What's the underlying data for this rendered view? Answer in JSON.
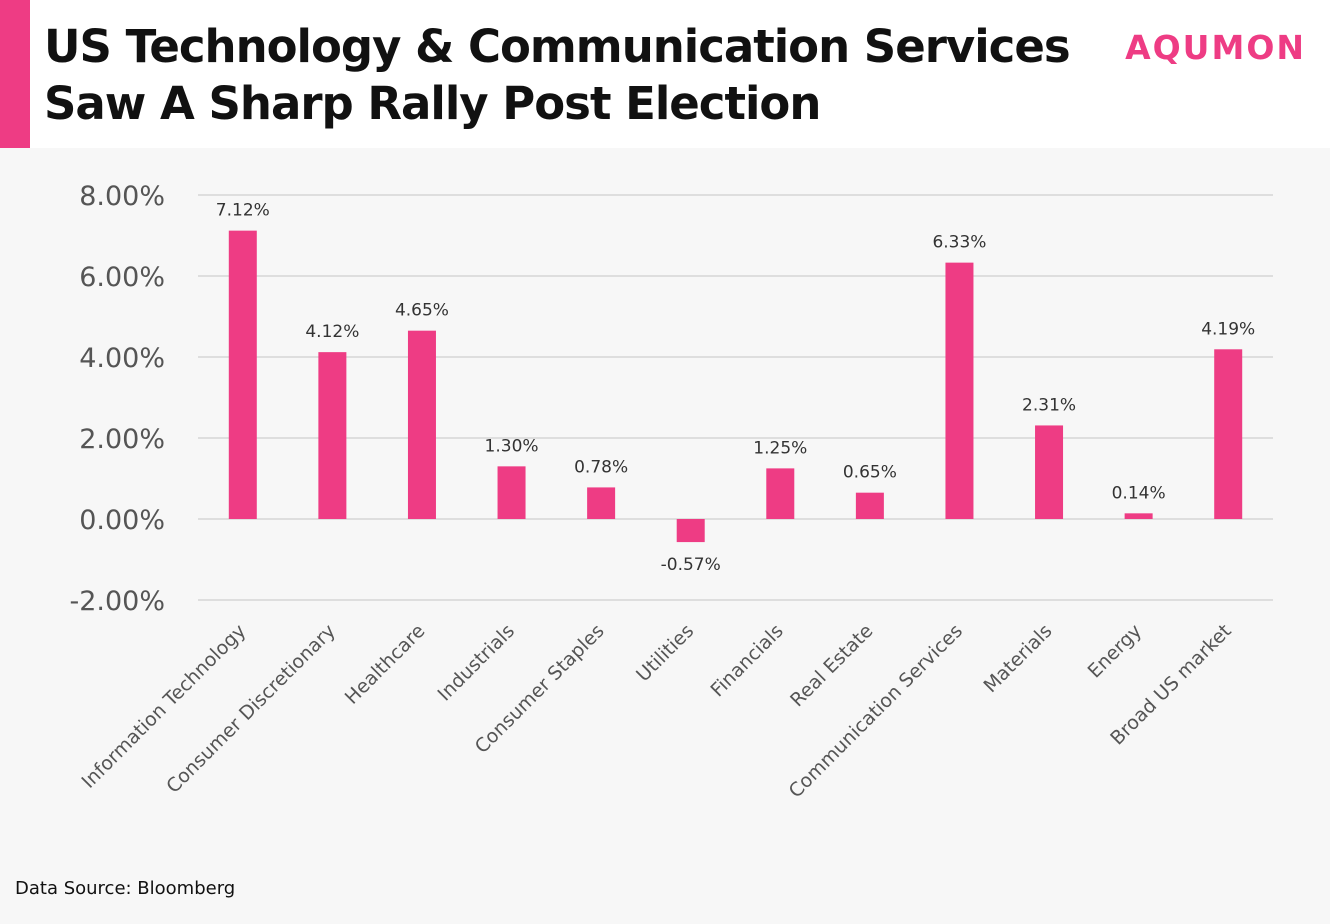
{
  "header": {
    "title_line1": "US Technology & Communication Services",
    "title_line2": "Saw A Sharp Rally Post Election",
    "logo": "AQUMON"
  },
  "footer": {
    "source": "Data Source: Bloomberg"
  },
  "colors": {
    "accent": "#ee3c84",
    "bar": "#ee3c84",
    "grid": "#d0d0d0",
    "axis_text": "#555555",
    "label_text": "#333333"
  },
  "chart_data": {
    "type": "bar",
    "title": "",
    "xlabel": "",
    "ylabel": "",
    "ylim": [
      -2,
      8
    ],
    "ytick_values": [
      8,
      6,
      4,
      2,
      0,
      -2
    ],
    "ytick_labels": [
      "8.00%",
      "6.00%",
      "4.00%",
      "2.00%",
      "0.00%",
      "-2.00%"
    ],
    "grid": true,
    "categories": [
      "Information Technology",
      "Consumer Discretionary",
      "Healthcare",
      "Industrials",
      "Consumer Staples",
      "Utilities",
      "Financials",
      "Real Estate",
      "Communication Services",
      "Materials",
      "Energy",
      "Broad US market"
    ],
    "values": [
      7.12,
      4.12,
      4.65,
      1.3,
      0.78,
      -0.57,
      1.25,
      0.65,
      6.33,
      2.31,
      0.14,
      4.19
    ],
    "data_labels": [
      "7.12%",
      "4.12%",
      "4.65%",
      "1.30%",
      "0.78%",
      "-0.57%",
      "1.25%",
      "0.65%",
      "6.33%",
      "2.31%",
      "0.14%",
      "4.19%"
    ]
  }
}
